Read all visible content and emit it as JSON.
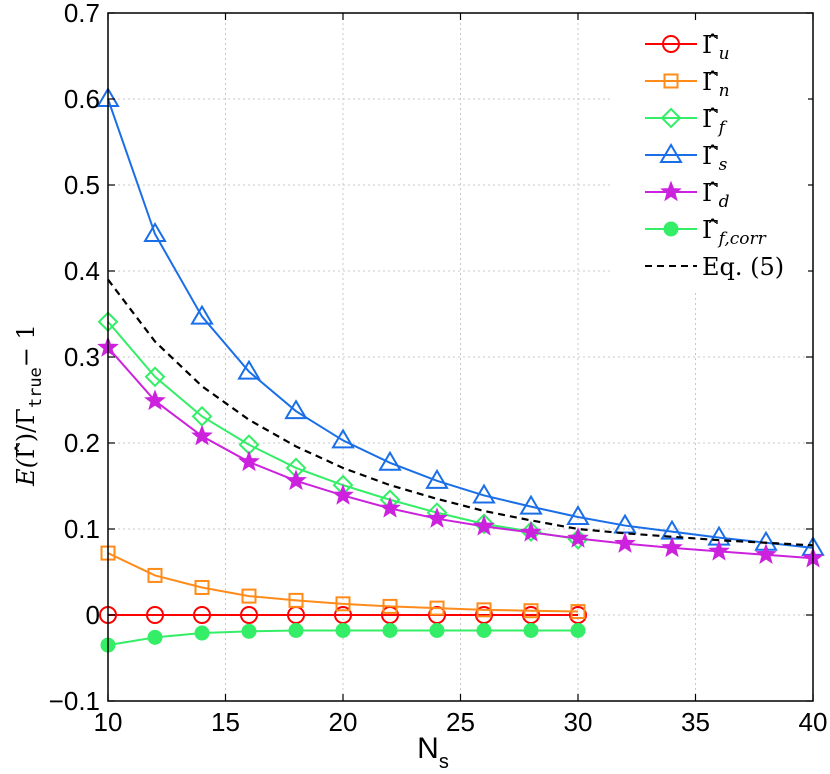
{
  "chart_data": {
    "type": "line",
    "title": "",
    "xlabel": "N_s",
    "ylabel": "E(Γ̂)/Γ_true − 1",
    "xlim": [
      10,
      40
    ],
    "ylim": [
      -0.1,
      0.7
    ],
    "grid": true,
    "legend_position": "top-right",
    "x_ticks": [
      "10",
      "15",
      "20",
      "25",
      "30",
      "35",
      "40"
    ],
    "y_ticks": [
      "−0.1",
      "0",
      "0.1",
      "0.2",
      "0.3",
      "0.4",
      "0.5",
      "0.6",
      "0.7"
    ],
    "series": [
      {
        "name": "Γ̂_u",
        "color": "#ff0000",
        "marker": "circle",
        "x": [
          10,
          12,
          14,
          16,
          18,
          20,
          22,
          24,
          26,
          28,
          30
        ],
        "values": [
          0,
          0,
          0,
          0,
          0,
          0,
          0,
          0,
          0,
          0,
          0
        ]
      },
      {
        "name": "Γ̂_n",
        "color": "#ff8c1a",
        "marker": "square",
        "x": [
          10,
          12,
          14,
          16,
          18,
          20,
          22,
          24,
          26,
          28,
          30
        ],
        "values": [
          0.072,
          0.046,
          0.032,
          0.022,
          0.017,
          0.013,
          0.01,
          0.008,
          0.006,
          0.005,
          0.004
        ]
      },
      {
        "name": "Γ̂_f",
        "color": "#33ee66",
        "marker": "diamond",
        "x": [
          10,
          12,
          14,
          16,
          18,
          20,
          22,
          24,
          26,
          28,
          30
        ],
        "values": [
          0.341,
          0.277,
          0.231,
          0.198,
          0.171,
          0.151,
          0.134,
          0.119,
          0.106,
          0.097,
          0.088
        ]
      },
      {
        "name": "Γ̂_s",
        "color": "#1a6fe8",
        "marker": "triangle",
        "x": [
          10,
          12,
          14,
          16,
          18,
          20,
          22,
          24,
          26,
          28,
          30,
          32,
          34,
          36,
          38,
          40
        ],
        "values": [
          0.6,
          0.443,
          0.347,
          0.283,
          0.237,
          0.203,
          0.177,
          0.156,
          0.139,
          0.126,
          0.114,
          0.104,
          0.097,
          0.09,
          0.084,
          0.078
        ]
      },
      {
        "name": "Γ̂_d",
        "color": "#cc22dd",
        "marker": "star",
        "x": [
          10,
          12,
          14,
          16,
          18,
          20,
          22,
          24,
          26,
          28,
          30,
          32,
          34,
          36,
          38,
          40
        ],
        "values": [
          0.311,
          0.249,
          0.208,
          0.178,
          0.156,
          0.139,
          0.124,
          0.112,
          0.103,
          0.096,
          0.089,
          0.083,
          0.078,
          0.074,
          0.07,
          0.066
        ]
      },
      {
        "name": "Γ̂_f,corr",
        "color": "#33ee66",
        "marker": "filled-circle",
        "x": [
          10,
          12,
          14,
          16,
          18,
          20,
          22,
          24,
          26,
          28,
          30
        ],
        "values": [
          -0.035,
          -0.026,
          -0.021,
          -0.019,
          -0.018,
          -0.018,
          -0.018,
          -0.018,
          -0.018,
          -0.018,
          -0.018
        ]
      },
      {
        "name": "Eq. (5)",
        "color": "#000000",
        "marker": "none",
        "dashed": true,
        "x": [
          10,
          12,
          14,
          16,
          18,
          20,
          22,
          24,
          26,
          28,
          30,
          32,
          34,
          36,
          38,
          40
        ],
        "values": [
          0.39,
          0.318,
          0.266,
          0.227,
          0.196,
          0.171,
          0.151,
          0.135,
          0.121,
          0.11,
          0.1,
          0.095,
          0.091,
          0.087,
          0.084,
          0.081
        ]
      }
    ],
    "legend": [
      {
        "base": "Γ̂",
        "sub": "u"
      },
      {
        "base": "Γ̂",
        "sub": "n"
      },
      {
        "base": "Γ̂",
        "sub": "f"
      },
      {
        "base": "Γ̂",
        "sub": "s"
      },
      {
        "base": "Γ̂",
        "sub": "d"
      },
      {
        "base": "Γ̂",
        "sub": "f,corr"
      },
      {
        "base": "Eq. (5)",
        "sub": ""
      }
    ],
    "xlabel_parts": {
      "base": "N",
      "sub": "s"
    },
    "ylabel_parts": {
      "a": "E(",
      "b": "Γ̂",
      "c": ")/Γ",
      "d": "true",
      "e": "− 1"
    }
  }
}
